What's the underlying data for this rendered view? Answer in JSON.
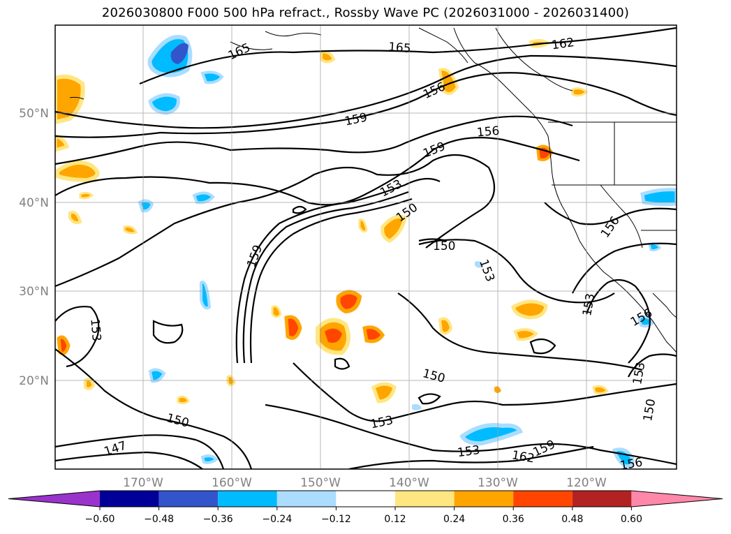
{
  "title": "2026030800 F000 500 hPa refract., Rossby Wave PC (2026031000 - 2026031400)",
  "lat_labels": [
    "50°N",
    "40°N",
    "30°N",
    "20°N"
  ],
  "lon_labels": [
    "170°W",
    "160°W",
    "150°W",
    "140°W",
    "130°W",
    "120°W"
  ],
  "contour_labels": [
    "165",
    "165",
    "162",
    "156",
    "159",
    "156",
    "159",
    "153",
    "150",
    "150",
    "153",
    "159",
    "153",
    "147",
    "150",
    "150",
    "153",
    "153",
    "162",
    "159",
    "153",
    "156",
    "156",
    "150",
    "156",
    "153"
  ],
  "colorbar": {
    "ticks": [
      "−0.60",
      "−0.48",
      "−0.36",
      "−0.24",
      "−0.12",
      "0.12",
      "0.24",
      "0.36",
      "0.48",
      "0.60"
    ],
    "colors": [
      "#9933cc",
      "#000099",
      "#3355cc",
      "#00bbff",
      "#aaddff",
      "#ffffff",
      "#ffe680",
      "#ffa500",
      "#ff4500",
      "#b22222",
      "#ff88aa",
      "#ff88aa"
    ]
  }
}
